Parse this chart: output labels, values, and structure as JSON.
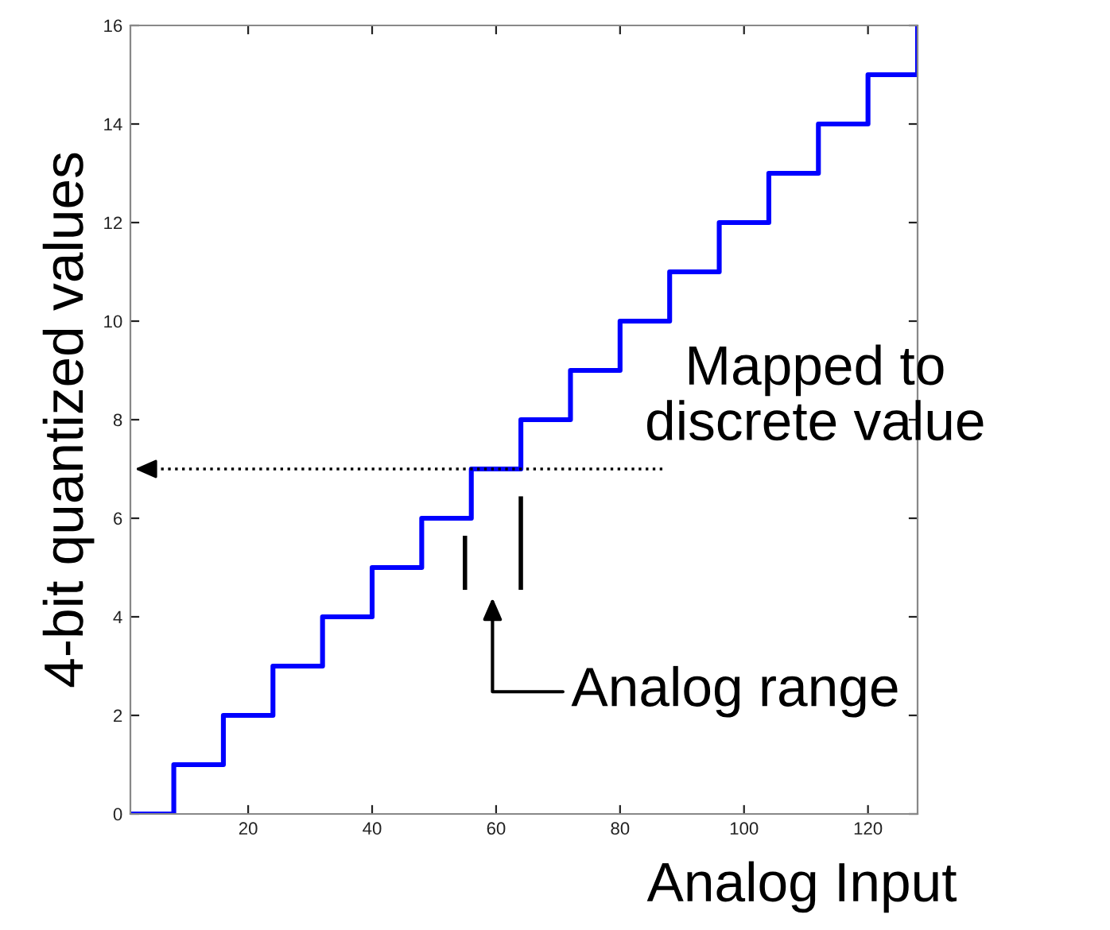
{
  "chart_data": {
    "type": "step",
    "xlabel": "Analog Input",
    "ylabel": "4-bit quantized values",
    "x": [
      1,
      8,
      16,
      24,
      32,
      40,
      48,
      56,
      64,
      72,
      80,
      88,
      96,
      104,
      112,
      120,
      128
    ],
    "series": [
      {
        "color": "#0000ff",
        "values": [
          0,
          1,
          2,
          3,
          4,
          5,
          6,
          7,
          8,
          9,
          10,
          11,
          12,
          13,
          14,
          15,
          16
        ]
      }
    ],
    "xlim": [
      1,
      128
    ],
    "ylim": [
      0,
      16
    ],
    "xticks": [
      20,
      40,
      60,
      80,
      100,
      120
    ],
    "yticks": [
      0,
      2,
      4,
      6,
      8,
      10,
      12,
      14,
      16
    ],
    "annotations": [
      "Analog range"
    ],
    "ref_lines": [
      {
        "axis": "y",
        "value": 7,
        "label": "Mapped to\ndiscrete value",
        "line_style": "dotted",
        "color": "#000000"
      }
    ],
    "grid": false,
    "legend": false
  }
}
